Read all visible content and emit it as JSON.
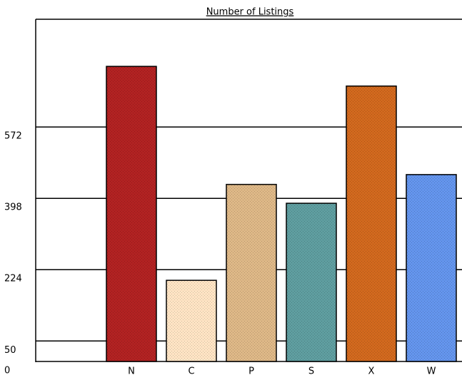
{
  "chart_data": {
    "type": "bar",
    "title": "Number of Listings",
    "categories": [
      "N",
      "C",
      "P",
      "S",
      "X",
      "W"
    ],
    "values": [
      720,
      198,
      432,
      386,
      672,
      456
    ],
    "colors": [
      "#b22222",
      "#ffe4c4",
      "#deb887",
      "#5f9ea0",
      "#d2691e",
      "#6495ed"
    ],
    "ylim": [
      0,
      835
    ],
    "yticks": [
      0,
      50,
      224,
      398,
      572
    ],
    "grid": true
  }
}
